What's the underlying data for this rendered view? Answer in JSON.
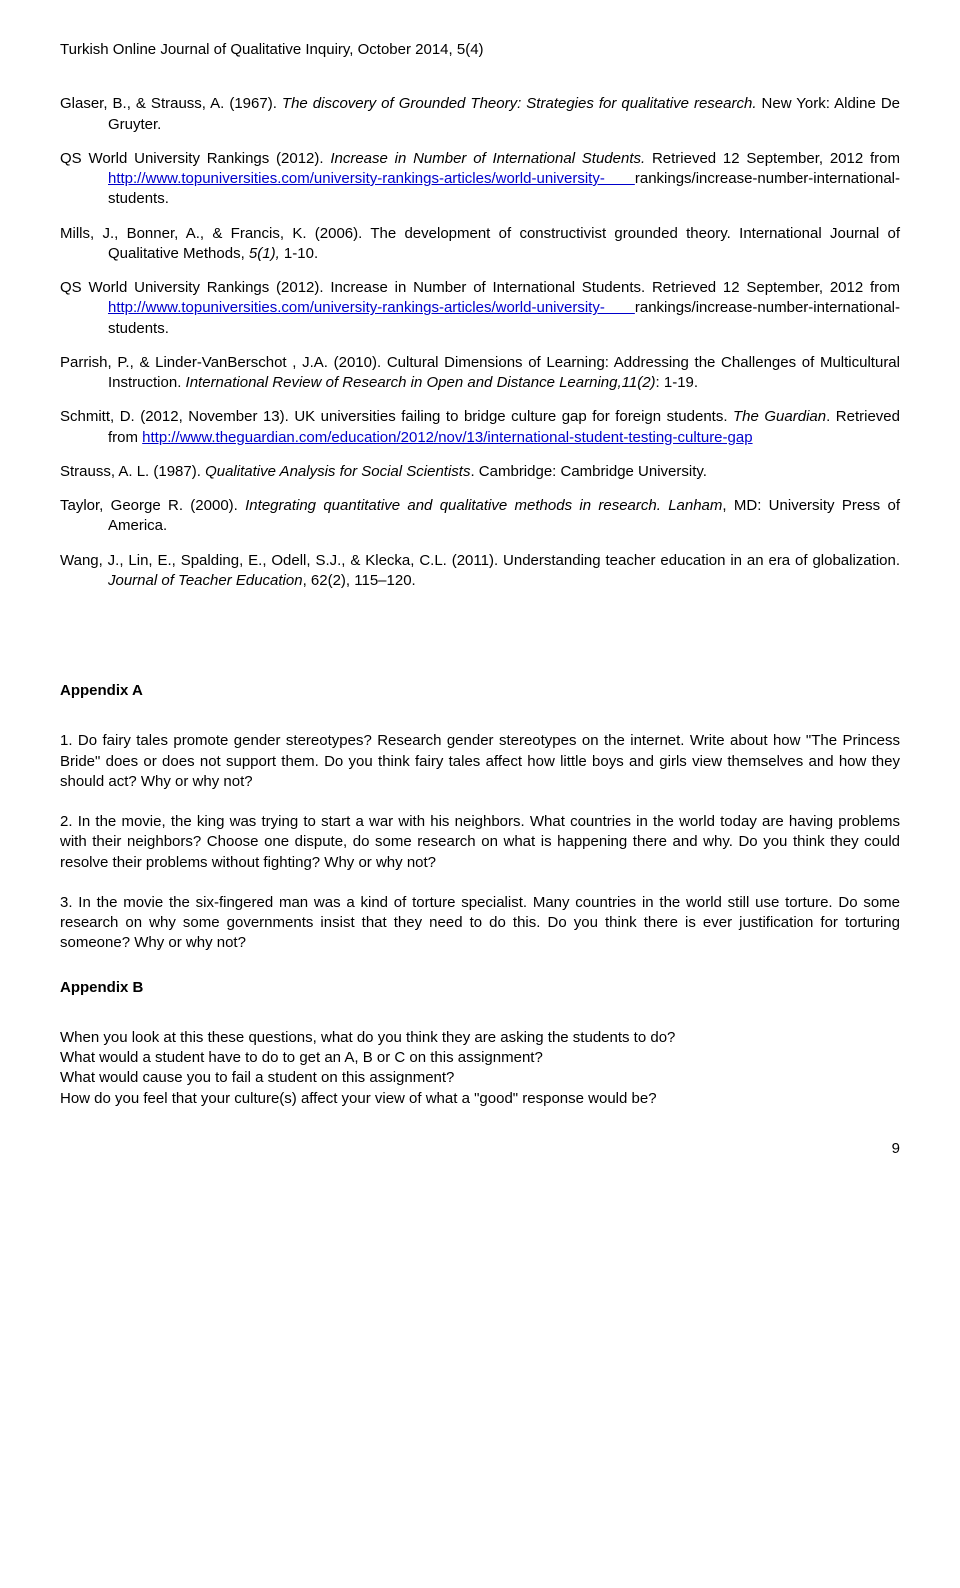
{
  "header": "Turkish Online Journal of Qualitative Inquiry, October 2014, 5(4)",
  "refs": {
    "r1a": "Glaser, B., & Strauss, A. (1967). ",
    "r1b": "The discovery of Grounded Theory: Strategies for qualitative research.",
    "r1c": " New York: Aldine De Gruyter.",
    "r2a": "QS World University Rankings (2012). ",
    "r2b": "Increase in Number of International Students.",
    "r2c": " Retrieved 12 September, 2012 from ",
    "r2d": "http://www.topuniversities.com/university-rankings-articles/world-university- ",
    "r2e": "rankings/increase-number-international-students.",
    "r3a": "Mills, J., Bonner, A., & Francis, K. (2006). The development of constructivist grounded theory. International Journal of Qualitative Methods, ",
    "r3b": "5(1),",
    "r3c": " 1-10.",
    "r5a": "Parrish, P., & Linder-VanBerschot , J.A. (2010). Cultural Dimensions of Learning: Addressing the Challenges of Multicultural Instruction. ",
    "r5b": "International Review of    Research in Open and Distance Learning,11(2)",
    "r5c": ": 1-19.",
    "r6a": "Schmitt, D. (2012, November 13). UK universities failing to bridge culture gap for foreign students. ",
    "r6b": "The Guardian",
    "r6c": ". Retrieved from ",
    "r6d": "http://www.theguardian.com/education/2012/nov/13/international-student-testing-culture-gap",
    "r7a": "Strauss, A. L. (1987). ",
    "r7b": "Qualitative Analysis for Social Scientists",
    "r7c": ". Cambridge: Cambridge    University.",
    "r8a": "Taylor, George R. (2000). ",
    "r8b": "Integrating quantitative and qualitative methods in research. Lanham",
    "r8c": ", MD: University Press of America.",
    "r9a": "Wang, J., Lin, E., Spalding, E., Odell, S.J., & Klecka, C.L. (2011). Understanding teacher education in an era of globalization. ",
    "r9b": "Journal of Teacher Education",
    "r9c": ", 62(2), 115–120."
  },
  "appendixA": {
    "title": "Appendix A",
    "p1": "1.  Do fairy tales promote gender stereotypes?  Research gender stereotypes on the internet.  Write about how \"The Princess Bride\" does or does not support them.  Do you think fairy tales affect how little boys and girls view themselves and how they should act? Why or why not?",
    "p2": "2.  In the movie, the king was trying to start a war with his neighbors.  What countries in the world today are having problems with their neighbors?  Choose one dispute, do some research on what is happening there and why.  Do you think they could resolve their problems without fighting?  Why or why not?",
    "p3": "3.  In the movie the six-fingered man was a kind of torture specialist.  Many countries in the world still use torture.  Do some research on why some governments insist that they need to do this.  Do you think there is ever justification for torturing someone?  Why or why not?"
  },
  "appendixB": {
    "title": "Appendix B",
    "p1": "When you look at this these questions, what do you think they are asking the students to do?",
    "p2": " What would a student have to do to get an A, B or C on this assignment?",
    "p3": "What would cause you to fail a student on this assignment?",
    "p4": "How do you feel that your culture(s) affect your view of what a \"good\" response would be?"
  },
  "pagenum": "9"
}
